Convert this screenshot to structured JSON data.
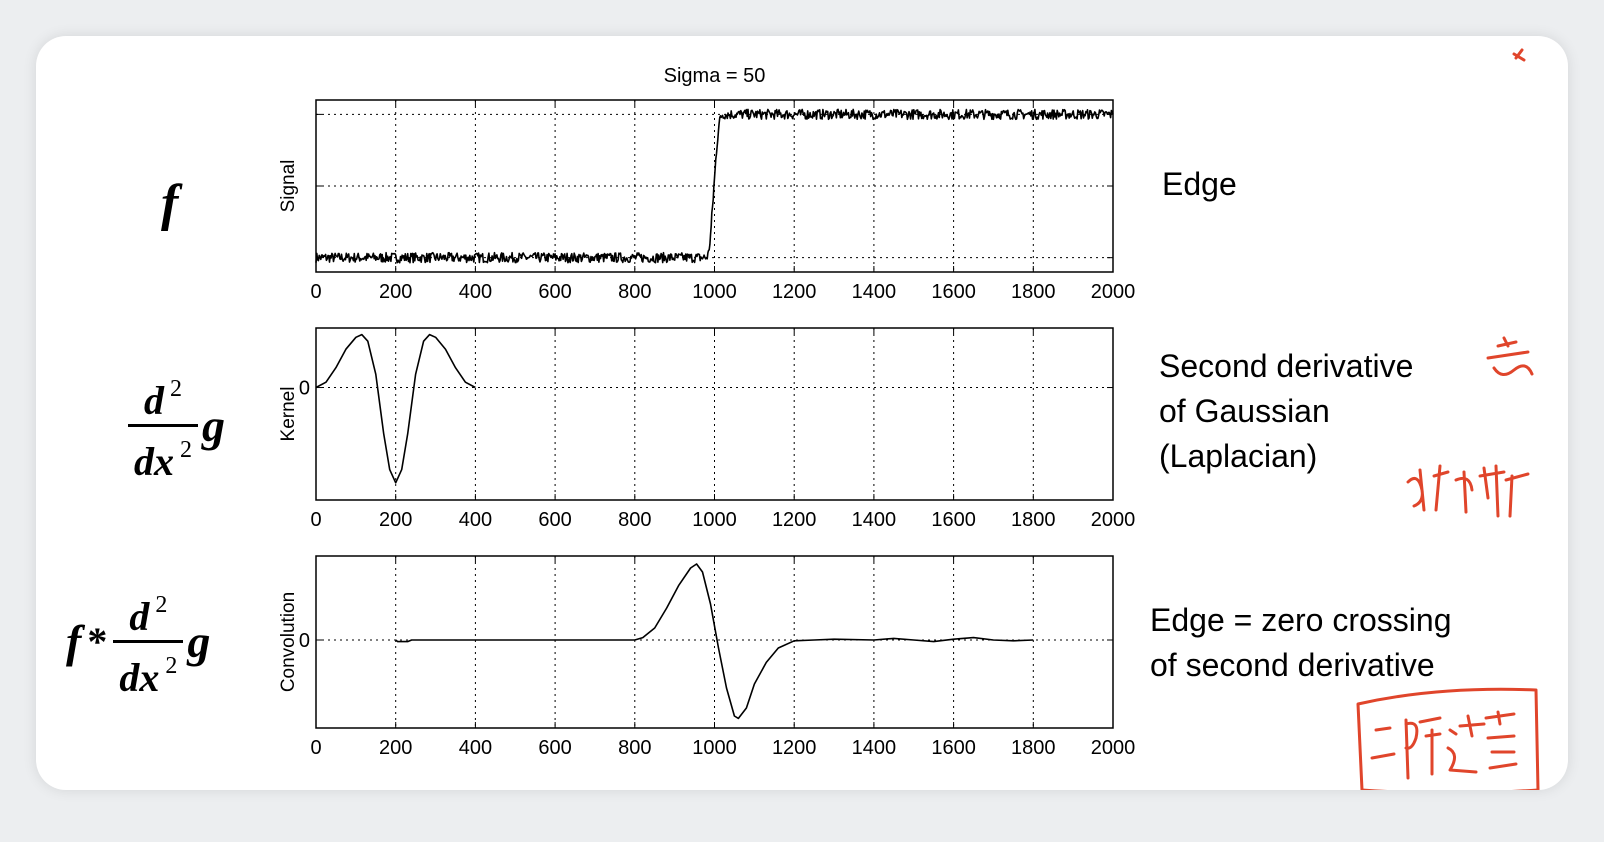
{
  "formulas": {
    "f1": "f",
    "d": "d",
    "dx": "dx",
    "exp": "2",
    "g": "g",
    "star": "*"
  },
  "descriptions": {
    "edge": "Edge",
    "laplacian_line1": "Second derivative",
    "laplacian_line2": "of Gaussian",
    "laplacian_line3": "(Laplacian)",
    "zero_line1": "Edge = zero crossing",
    "zero_line2": "of second derivative"
  },
  "annotation_color": "#e0452b",
  "chart_data": [
    {
      "type": "line",
      "title": "Sigma = 50",
      "ylabel": "Signal",
      "xlabel": "",
      "xlim": [
        0,
        2000
      ],
      "ylim": [
        -0.1,
        1.1
      ],
      "xticks": [
        "0",
        "200",
        "400",
        "600",
        "800",
        "1000",
        "1200",
        "1400",
        "1600",
        "1800",
        "2000"
      ],
      "grid": true,
      "gridlines_y": [
        0,
        0.5,
        1
      ],
      "series": [
        {
          "x": [
            0,
            980,
            985,
            990,
            995,
            1000,
            1005,
            1010,
            1015,
            1020,
            2000
          ],
          "y": [
            0,
            0,
            0.03,
            0.15,
            0.35,
            0.55,
            0.75,
            0.9,
            0.98,
            1,
            1
          ],
          "noise": 0.035
        }
      ]
    },
    {
      "type": "line",
      "ylabel": "Kernel",
      "xlabel": "",
      "xlim": [
        0,
        2000
      ],
      "ylim": [
        -0.85,
        0.45
      ],
      "xticks": [
        "0",
        "200",
        "400",
        "600",
        "800",
        "1000",
        "1200",
        "1400",
        "1600",
        "1800",
        "2000"
      ],
      "yticks": [
        "0"
      ],
      "grid": true,
      "series": [
        {
          "x": [
            0,
            25,
            50,
            75,
            100,
            115,
            130,
            150,
            170,
            185,
            200,
            215,
            230,
            250,
            270,
            285,
            300,
            325,
            350,
            375,
            400
          ],
          "y": [
            0,
            0.04,
            0.15,
            0.29,
            0.38,
            0.4,
            0.35,
            0.1,
            -0.35,
            -0.62,
            -0.72,
            -0.62,
            -0.35,
            0.1,
            0.35,
            0.4,
            0.38,
            0.29,
            0.15,
            0.04,
            0
          ]
        }
      ]
    },
    {
      "type": "line",
      "ylabel": "Convolution",
      "xlabel": "",
      "xlim": [
        0,
        2000
      ],
      "ylim": [
        -1.1,
        1.05
      ],
      "xticks": [
        "0",
        "200",
        "400",
        "600",
        "800",
        "1000",
        "1200",
        "1400",
        "1600",
        "1800",
        "2000"
      ],
      "yticks": [
        "0"
      ],
      "grid": true,
      "series": [
        {
          "x": [
            200,
            205,
            210,
            230,
            240,
            300,
            400,
            600,
            800,
            820,
            850,
            880,
            910,
            940,
            955,
            970,
            990,
            1010,
            1030,
            1050,
            1060,
            1080,
            1100,
            1130,
            1160,
            1200,
            1250,
            1300,
            1400,
            1450,
            1500,
            1550,
            1600,
            1650,
            1700,
            1750,
            1800
          ],
          "y": [
            0,
            -0.02,
            -0.02,
            -0.02,
            0,
            0,
            0,
            0,
            0,
            0.03,
            0.15,
            0.4,
            0.68,
            0.9,
            0.95,
            0.85,
            0.45,
            -0.1,
            -0.6,
            -0.95,
            -0.98,
            -0.85,
            -0.55,
            -0.28,
            -0.1,
            -0.01,
            0,
            0.01,
            0,
            0.02,
            0,
            -0.02,
            0.01,
            0.03,
            0,
            -0.01,
            0
          ]
        }
      ]
    }
  ]
}
